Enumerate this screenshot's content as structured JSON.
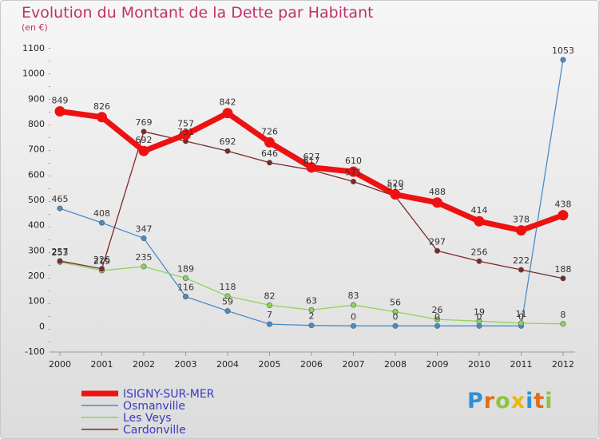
{
  "chart_data": {
    "type": "line",
    "title": "Evolution du Montant de la Dette par Habitant",
    "subtitle": "(en €)",
    "x": [
      "2000",
      "2001",
      "2002",
      "2003",
      "2004",
      "2005",
      "2006",
      "2007",
      "2008",
      "2009",
      "2010",
      "2011",
      "2012"
    ],
    "yticks": [
      -100,
      0,
      100,
      200,
      300,
      400,
      500,
      600,
      700,
      800,
      900,
      1000,
      1100
    ],
    "ylim": [
      -100,
      1100
    ],
    "grid": false,
    "series": [
      {
        "name": "ISIGNY-SUR-MER",
        "color": "#ee1111",
        "values": [
          849,
          826,
          692,
          757,
          842,
          726,
          627,
          610,
          520,
          488,
          414,
          378,
          438
        ]
      },
      {
        "name": "Osmanville",
        "color": "#4a8cc8",
        "values": [
          465,
          408,
          347,
          116,
          59,
          7,
          2,
          0,
          0,
          0,
          0,
          0,
          1053
        ]
      },
      {
        "name": "Les Veys",
        "color": "#8fd45a",
        "values": [
          253,
          219,
          235,
          189,
          118,
          82,
          63,
          83,
          56,
          26,
          19,
          11,
          8
        ]
      },
      {
        "name": "Cardonville",
        "color": "#7a2a2a",
        "values": [
          257,
          226,
          769,
          731,
          692,
          646,
          617,
          571,
          513,
          297,
          256,
          222,
          188
        ]
      }
    ]
  },
  "logo": {
    "letters": [
      "P",
      "r",
      "o",
      "x",
      "i",
      "t",
      "i"
    ],
    "colors": [
      "#2f8fd8",
      "#e06d1a",
      "#8bc53f",
      "#e8b80c",
      "#2f8fd8",
      "#e06d1a",
      "#8bc53f"
    ]
  }
}
